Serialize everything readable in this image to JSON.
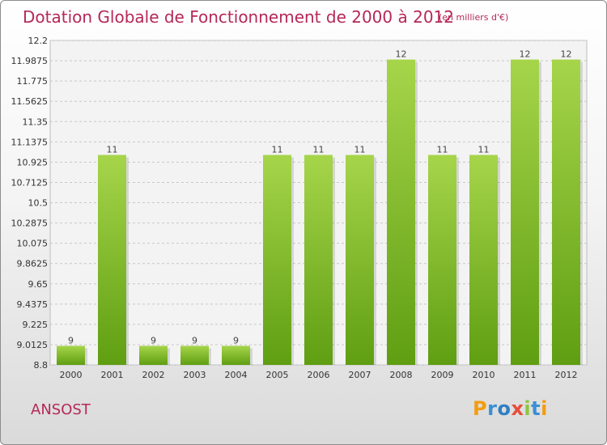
{
  "title": "Dotation Globale de Fonctionnement de 2000 à 2012",
  "subtitle": "(en milliers d'€)",
  "commune": "ANSOST",
  "logo": {
    "text": "Proxiti",
    "letters": [
      {
        "ch": "P",
        "color": "#f39c12"
      },
      {
        "ch": "r",
        "color": "#3b8fd4"
      },
      {
        "ch": "o",
        "color": "#2e7fc4"
      },
      {
        "ch": "x",
        "color": "#e74c3c"
      },
      {
        "ch": "i",
        "color": "#8dc63f"
      },
      {
        "ch": "t",
        "color": "#3b8fd4"
      },
      {
        "ch": "i",
        "color": "#f39c12"
      }
    ]
  },
  "colors": {
    "title": "#b52859",
    "bar_top": "#a6d54a",
    "bar_bottom": "#5f9e12",
    "grid": "#c8c8c8"
  },
  "chart_data": {
    "type": "bar",
    "categories": [
      "2000",
      "2001",
      "2002",
      "2003",
      "2004",
      "2005",
      "2006",
      "2007",
      "2008",
      "2009",
      "2010",
      "2011",
      "2012"
    ],
    "values": [
      9,
      11,
      9,
      9,
      9,
      11,
      11,
      11,
      12,
      11,
      11,
      12,
      12
    ],
    "value_labels": [
      "9",
      "11",
      "9",
      "9",
      "9",
      "11",
      "11",
      "11",
      "12",
      "11",
      "11",
      "12",
      "12"
    ],
    "yticks": [
      "12.2",
      "11.9875",
      "11.775",
      "11.5625",
      "11.35",
      "11.1375",
      "10.925",
      "10.7125",
      "10.5",
      "10.2875",
      "10.075",
      "9.8625",
      "9.65",
      "9.4375",
      "9.225",
      "9.0125",
      "8.8"
    ],
    "ylim": [
      8.8,
      12.2
    ],
    "xlabel": "",
    "ylabel": "",
    "grid": true,
    "legend": "none"
  }
}
